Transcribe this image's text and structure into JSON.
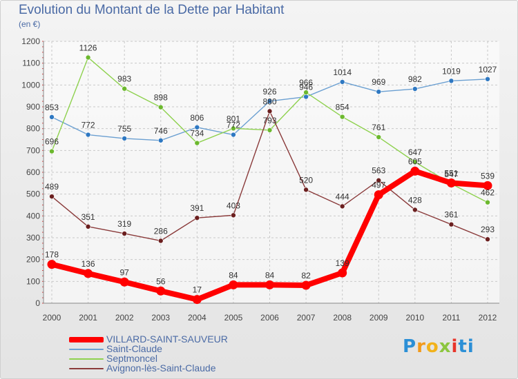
{
  "title": "Evolution du Montant de la Dette par Habitant",
  "unit_label": "(en €)",
  "logo": {
    "letters": [
      "P",
      "r",
      "o",
      "x",
      "i",
      "ti"
    ]
  },
  "chart_data": {
    "type": "line",
    "title": "Evolution du Montant de la Dette par Habitant",
    "subtitle": "(en €)",
    "x": [
      "2000",
      "2001",
      "2002",
      "2003",
      "2004",
      "2005",
      "2006",
      "2007",
      "2008",
      "2009",
      "2010",
      "2011",
      "2012"
    ],
    "ylim": [
      0,
      1200
    ],
    "yticks": [
      "0",
      "100",
      "200",
      "300",
      "400",
      "500",
      "600",
      "700",
      "800",
      "900",
      "1000",
      "1100",
      "1200"
    ],
    "grid": true,
    "legend_position": "bottom-left",
    "series": [
      {
        "name": "Saint-Claude",
        "color": "#6a9fd1",
        "marker_color": "#2e78c2",
        "thick": false,
        "values": [
          853,
          772,
          755,
          746,
          806,
          772,
          926,
          946,
          1014,
          969,
          982,
          1019,
          1027
        ],
        "labels": [
          "853",
          "772",
          "755",
          "746",
          "806",
          "772",
          "926",
          "946",
          "1014",
          "969",
          "982",
          "1019",
          "1027"
        ]
      },
      {
        "name": "Septmoncel",
        "color": "#8ed14e",
        "marker_color": "#6cb82e",
        "thick": false,
        "values": [
          696,
          1126,
          983,
          898,
          734,
          801,
          793,
          966,
          854,
          761,
          647,
          547,
          462
        ],
        "labels": [
          "696",
          "1126",
          "983",
          "898",
          "734",
          "801",
          "793",
          "966",
          "854",
          "761",
          "647",
          "547",
          "462"
        ]
      },
      {
        "name": "Avignon-lès-Saint-Claude",
        "color": "#8a3a3a",
        "marker_color": "#6b1f1f",
        "thick": false,
        "values": [
          489,
          351,
          319,
          286,
          391,
          403,
          880,
          520,
          444,
          563,
          428,
          361,
          293
        ],
        "labels": [
          "489",
          "351",
          "319",
          "286",
          "391",
          "403",
          "880",
          "520",
          "444",
          "563",
          "428",
          "361",
          "293"
        ]
      },
      {
        "name": "VILLARD-SAINT-SAUVEUR",
        "color": "#ff0000",
        "marker_color": "#ff0000",
        "thick": true,
        "values": [
          178,
          136,
          97,
          56,
          17,
          84,
          84,
          82,
          139,
          497,
          605,
          551,
          539
        ],
        "labels": [
          "178",
          "136",
          "97",
          "56",
          "17",
          "84",
          "84",
          "82",
          "139",
          "497",
          "605",
          "551",
          "539"
        ]
      }
    ]
  },
  "legend": [
    {
      "label": "VILLARD-SAINT-SAUVEUR",
      "color": "#ff0000",
      "thick": true
    },
    {
      "label": "Saint-Claude",
      "color": "#6a9fd1",
      "thick": false
    },
    {
      "label": "Septmoncel",
      "color": "#8ed14e",
      "thick": false
    },
    {
      "label": "Avignon-lès-Saint-Claude",
      "color": "#8a3a3a",
      "thick": false
    }
  ]
}
